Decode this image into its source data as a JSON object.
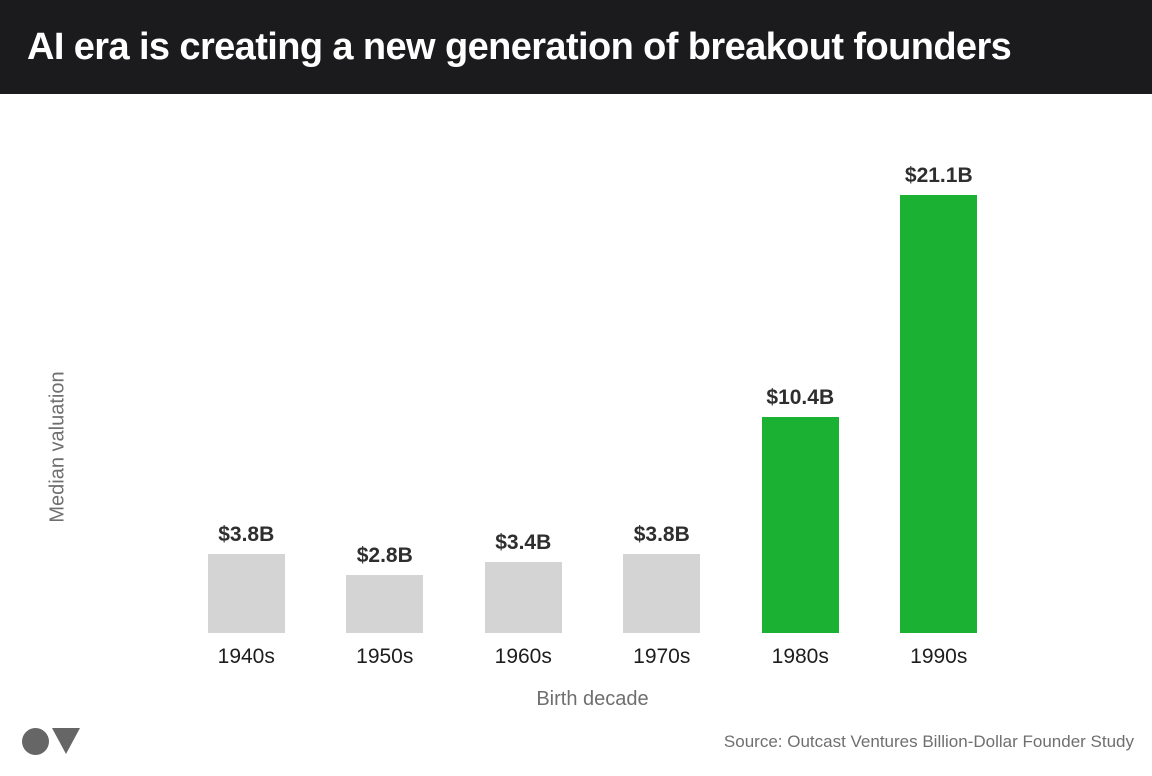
{
  "header": {
    "title": "AI era is creating a new generation of breakout founders",
    "background": "#1b1b1d",
    "text_color": "#ffffff"
  },
  "chart_data": {
    "type": "bar",
    "title": "AI era is creating a new generation of breakout founders",
    "categories": [
      "1940s",
      "1950s",
      "1960s",
      "1970s",
      "1980s",
      "1990s"
    ],
    "values": [
      3.8,
      2.8,
      3.4,
      3.8,
      10.4,
      21.1
    ],
    "value_labels": [
      "$3.8B",
      "$2.8B",
      "$3.4B",
      "$3.8B",
      "$10.4B",
      "$21.1B"
    ],
    "bar_colors": [
      "#d4d4d4",
      "#d4d4d4",
      "#d4d4d4",
      "#d4d4d4",
      "#1bb234",
      "#1bb234"
    ],
    "xlabel": "Birth decade",
    "ylabel": "Median valuation",
    "unit": "billions USD",
    "ylim": [
      0,
      22
    ],
    "grid": false,
    "legend": "none",
    "highlight_note": "1980s and 1990s bars highlighted green; earlier decades gray"
  },
  "colors": {
    "bar_gray": "#d4d4d4",
    "bar_green": "#1bb234",
    "axis_label": "#6f6f6f",
    "tick_label": "#1d1d1f",
    "value_label": "#2e2e2e",
    "logo": "#666666"
  },
  "footer": {
    "source": "Source: Outcast Ventures Billion-Dollar Founder Study",
    "logo_shapes": [
      "circle",
      "triangle-down"
    ]
  }
}
